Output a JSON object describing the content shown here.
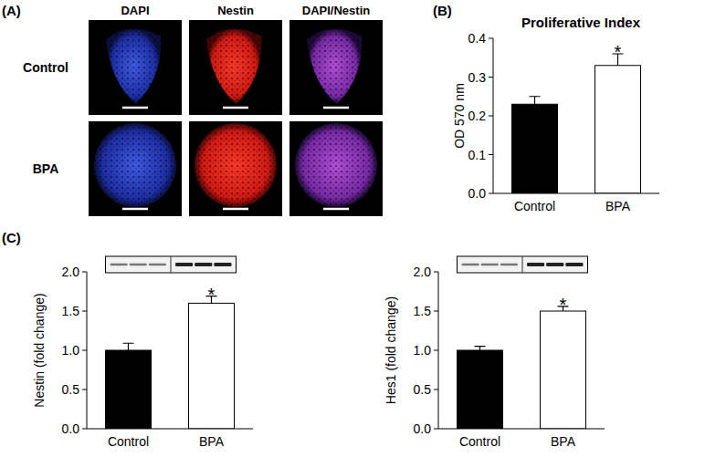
{
  "figure": {
    "panel_labels": [
      "(A)",
      "(B)",
      "(C)"
    ],
    "images": {
      "columns": [
        "DAPI",
        "Nestin",
        "DAPI/Nestin"
      ],
      "rows": [
        "Control",
        "BPA"
      ]
    }
  },
  "chart_data": [
    {
      "type": "bar",
      "title": "Proliferative Index",
      "y_label": "OD 570 nm",
      "categories": [
        "Control",
        "BPA"
      ],
      "values": [
        0.23,
        0.33
      ],
      "errors": [
        0.02,
        0.03
      ],
      "colors": [
        "#000000",
        "#ffffff"
      ],
      "ylim": [
        0,
        0.4
      ],
      "yticks": [
        {
          "value": 0,
          "label": "0.0"
        },
        0.1,
        0.2,
        0.3,
        0.4
      ],
      "annotations": [
        {
          "category": "BPA",
          "text": "*"
        }
      ]
    },
    {
      "type": "bar",
      "y_label": "Nestin (fold change)",
      "categories": [
        "Control",
        "BPA"
      ],
      "values": [
        1.0,
        1.6
      ],
      "errors": [
        0.09,
        0.09
      ],
      "colors": [
        "#000000",
        "#ffffff"
      ],
      "ylim": [
        0,
        2
      ],
      "yticks": [
        {
          "value": 0,
          "label": "0.0"
        },
        0.5,
        {
          "value": 1,
          "label": "1.0"
        },
        1.5,
        {
          "value": 2,
          "label": "2.0"
        }
      ],
      "annotations": [
        {
          "category": "BPA",
          "text": "*"
        }
      ]
    },
    {
      "type": "bar",
      "y_label": "Hes1 (fold change)",
      "categories": [
        "Control",
        "BPA"
      ],
      "values": [
        1.0,
        1.5
      ],
      "errors": [
        0.05,
        0.06
      ],
      "colors": [
        "#000000",
        "#ffffff"
      ],
      "ylim": [
        0,
        2
      ],
      "yticks": [
        {
          "value": 0,
          "label": "0.0"
        },
        0.5,
        {
          "value": 1,
          "label": "1.0"
        },
        1.5,
        {
          "value": 2,
          "label": "2.0"
        }
      ],
      "annotations": [
        {
          "category": "BPA",
          "text": "*"
        }
      ]
    }
  ]
}
